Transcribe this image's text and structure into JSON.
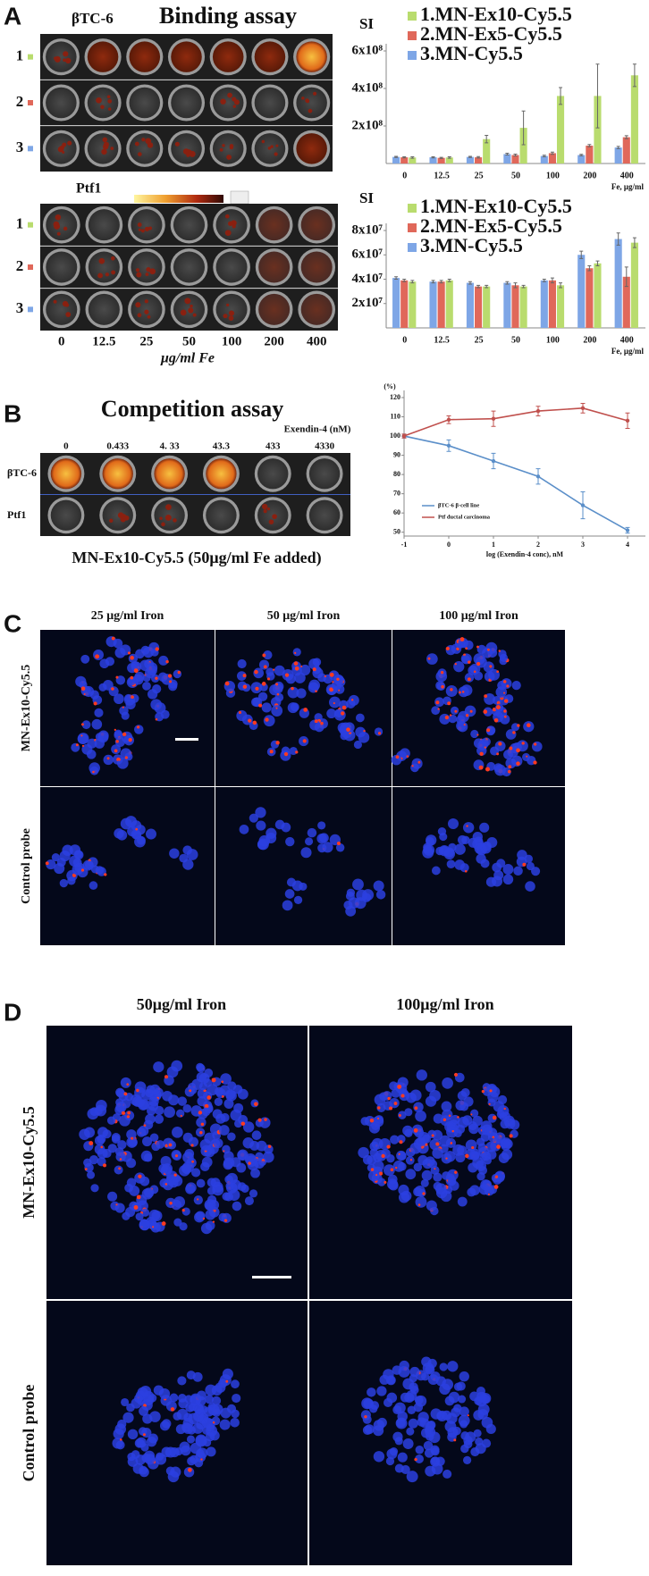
{
  "panel_a": {
    "label": "A",
    "cell_line": "βTC-6",
    "title": "Binding assay",
    "row_labels": [
      "1",
      "2",
      "3"
    ],
    "ptf_label": "Ptf1",
    "ptf_row_labels": [
      "1",
      "2",
      "3"
    ],
    "concentrations": [
      "0",
      "12.5",
      "25",
      "50",
      "100",
      "200",
      "400"
    ],
    "unit": "μg/ml Fe"
  },
  "panel_b": {
    "label": "B",
    "title": "Competition assay",
    "exendin_label": "Exendin-4 (nM)",
    "concentrations": [
      "0",
      "0.433",
      "4. 33",
      "43.3",
      "433",
      "4330"
    ],
    "row_labels": [
      "βTC-6",
      "Ptf1"
    ],
    "caption": "MN-Ex10-Cy5.5 (50μg/ml Fe added)"
  },
  "panel_c": {
    "label": "C",
    "columns": [
      "25 μg/ml Iron",
      "50 μg/ml Iron",
      "100 μg/ml Iron"
    ],
    "rows": [
      "MN-Ex10-Cy5.5",
      "Control probe"
    ]
  },
  "panel_d": {
    "label": "D",
    "columns": [
      "50μg/ml Iron",
      "100μg/ml Iron"
    ],
    "rows": [
      "MN-Ex10-Cy5.5",
      "Control probe"
    ]
  },
  "chart_data": [
    {
      "type": "bar",
      "y_label": "SI",
      "x_label": "Fe, μg/ml",
      "categories": [
        "0",
        "12.5",
        "25",
        "50",
        "100",
        "200",
        "400"
      ],
      "series": [
        {
          "name": "1.MN-Ex10-Cy5.5",
          "color": "#b9dc6e",
          "values": [
            32000000,
            32000000,
            130000000,
            190000000,
            360000000,
            360000000,
            470000000
          ],
          "errors": [
            4000000,
            4000000,
            20000000,
            90000000,
            45000000,
            170000000,
            60000000
          ]
        },
        {
          "name": "2.MN-Ex5-Cy5.5",
          "color": "#e0685a",
          "values": [
            33000000,
            30000000,
            33000000,
            45000000,
            55000000,
            95000000,
            140000000
          ],
          "errors": [
            3000000,
            3000000,
            4000000,
            5000000,
            6000000,
            6000000,
            8000000
          ]
        },
        {
          "name": "3.MN-Cy5.5",
          "color": "#7ea6e6",
          "values": [
            35000000,
            33000000,
            35000000,
            50000000,
            40000000,
            45000000,
            85000000
          ],
          "errors": [
            3000000,
            3000000,
            3000000,
            5000000,
            4000000,
            4000000,
            6000000
          ]
        }
      ],
      "ylim": [
        0,
        600000000
      ],
      "yticks": [
        {
          "value": 200000000,
          "label": "2x10⁸"
        },
        {
          "value": 400000000,
          "label": "4x10⁸"
        },
        {
          "value": 600000000,
          "label": "6x10⁸"
        }
      ]
    },
    {
      "type": "bar",
      "y_label": "SI",
      "x_label": "Fe, μg/ml",
      "categories": [
        "0",
        "12.5",
        "25",
        "50",
        "100",
        "200",
        "400"
      ],
      "series": [
        {
          "name": "1.MN-Ex10-Cy5.5",
          "color": "#b9dc6e",
          "values": [
            38000000,
            39000000,
            34000000,
            34000000,
            35000000,
            53000000,
            70000000
          ],
          "errors": [
            1000000,
            1000000,
            1000000,
            1000000,
            2000000,
            2000000,
            4000000
          ]
        },
        {
          "name": "2.MN-Ex5-Cy5.5",
          "color": "#e0685a",
          "values": [
            39000000,
            38000000,
            34000000,
            35000000,
            39000000,
            49000000,
            42000000
          ],
          "errors": [
            1000000,
            1000000,
            1000000,
            2000000,
            2000000,
            2000000,
            8000000
          ]
        },
        {
          "name": "3.MN-Cy5.5",
          "color": "#7ea6e6",
          "values": [
            41000000,
            38000000,
            37000000,
            37000000,
            39000000,
            60000000,
            73000000
          ],
          "errors": [
            1000000,
            1000000,
            1000000,
            1000000,
            1000000,
            3000000,
            5000000
          ]
        }
      ],
      "ylim": [
        0,
        80000000
      ],
      "yticks": [
        {
          "value": 20000000,
          "label": "2x10⁷"
        },
        {
          "value": 40000000,
          "label": "4x10⁷"
        },
        {
          "value": 60000000,
          "label": "6x10⁷"
        },
        {
          "value": 80000000,
          "label": "8x10⁷"
        }
      ]
    },
    {
      "type": "line",
      "y_label": "(%)",
      "x_label": "log (Exendin-4 conc), nM",
      "x": [
        -1,
        0,
        1,
        2,
        3,
        4
      ],
      "series": [
        {
          "name": "βTC-6 β-cell line",
          "color": "#5b8fc9",
          "values": [
            100,
            95,
            87,
            79,
            64,
            51
          ],
          "errors": [
            1,
            3,
            4,
            4,
            7,
            1.5
          ]
        },
        {
          "name": "Ptf ductal carcinoma",
          "color": "#c0504d",
          "values": [
            100,
            108.5,
            109,
            113,
            114.5,
            108
          ],
          "errors": [
            1,
            2,
            4,
            2.5,
            2.5,
            4
          ]
        }
      ],
      "xlim": [
        -1,
        4.4
      ],
      "xticks": [
        -1,
        0,
        1,
        2,
        3,
        4
      ],
      "ylim": [
        48,
        120
      ],
      "yticks": [
        50,
        60,
        70,
        80,
        90,
        100,
        110,
        120
      ]
    }
  ]
}
